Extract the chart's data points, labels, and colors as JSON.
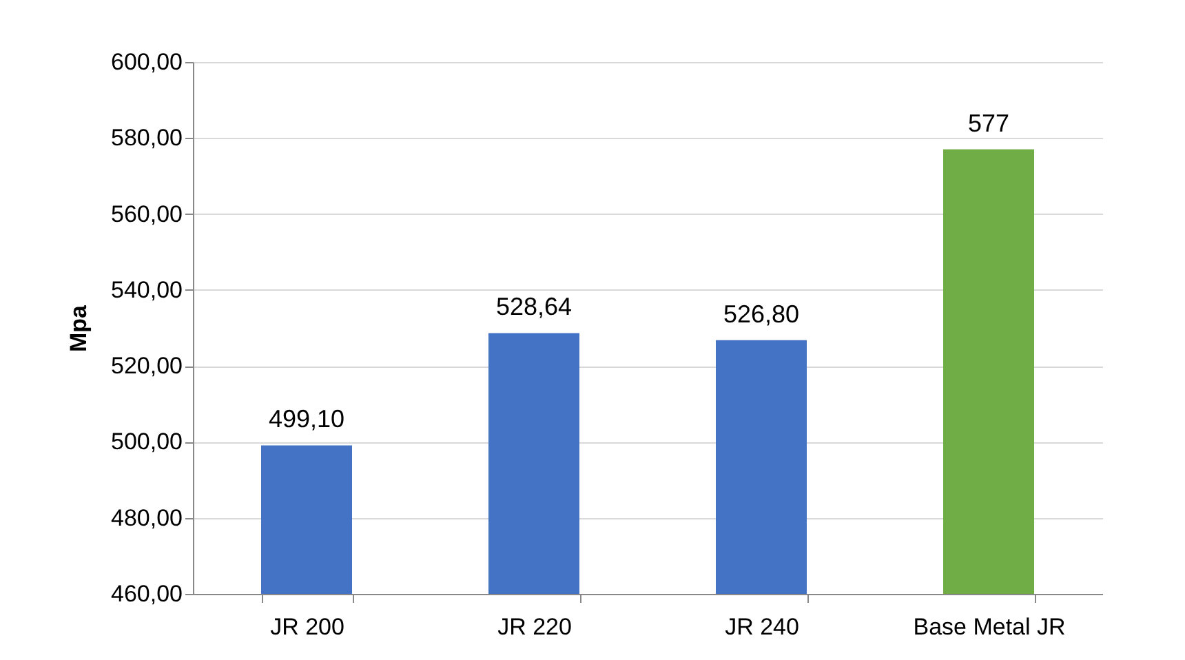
{
  "chart_data": {
    "type": "bar",
    "ylabel": "Mpa",
    "categories": [
      "JR 200",
      "JR 220",
      "JR 240",
      "Base Metal JR"
    ],
    "values": [
      499.1,
      528.64,
      526.8,
      577
    ],
    "colors": [
      "#4472c4",
      "#4472c4",
      "#4472c4",
      "#70ad47"
    ],
    "value_labels": [
      "499,10",
      "528,64",
      "526,80",
      "577"
    ],
    "ylim": [
      460,
      600
    ],
    "yticks": [
      {
        "value": 460,
        "label": "460,00"
      },
      {
        "value": 480,
        "label": "480,00"
      },
      {
        "value": 500,
        "label": "500,00"
      },
      {
        "value": 520,
        "label": "520,00"
      },
      {
        "value": 540,
        "label": "540,00"
      },
      {
        "value": 560,
        "label": "560,00"
      },
      {
        "value": 580,
        "label": "580,00"
      },
      {
        "value": 600,
        "label": "600,00"
      }
    ],
    "grid": "y"
  }
}
